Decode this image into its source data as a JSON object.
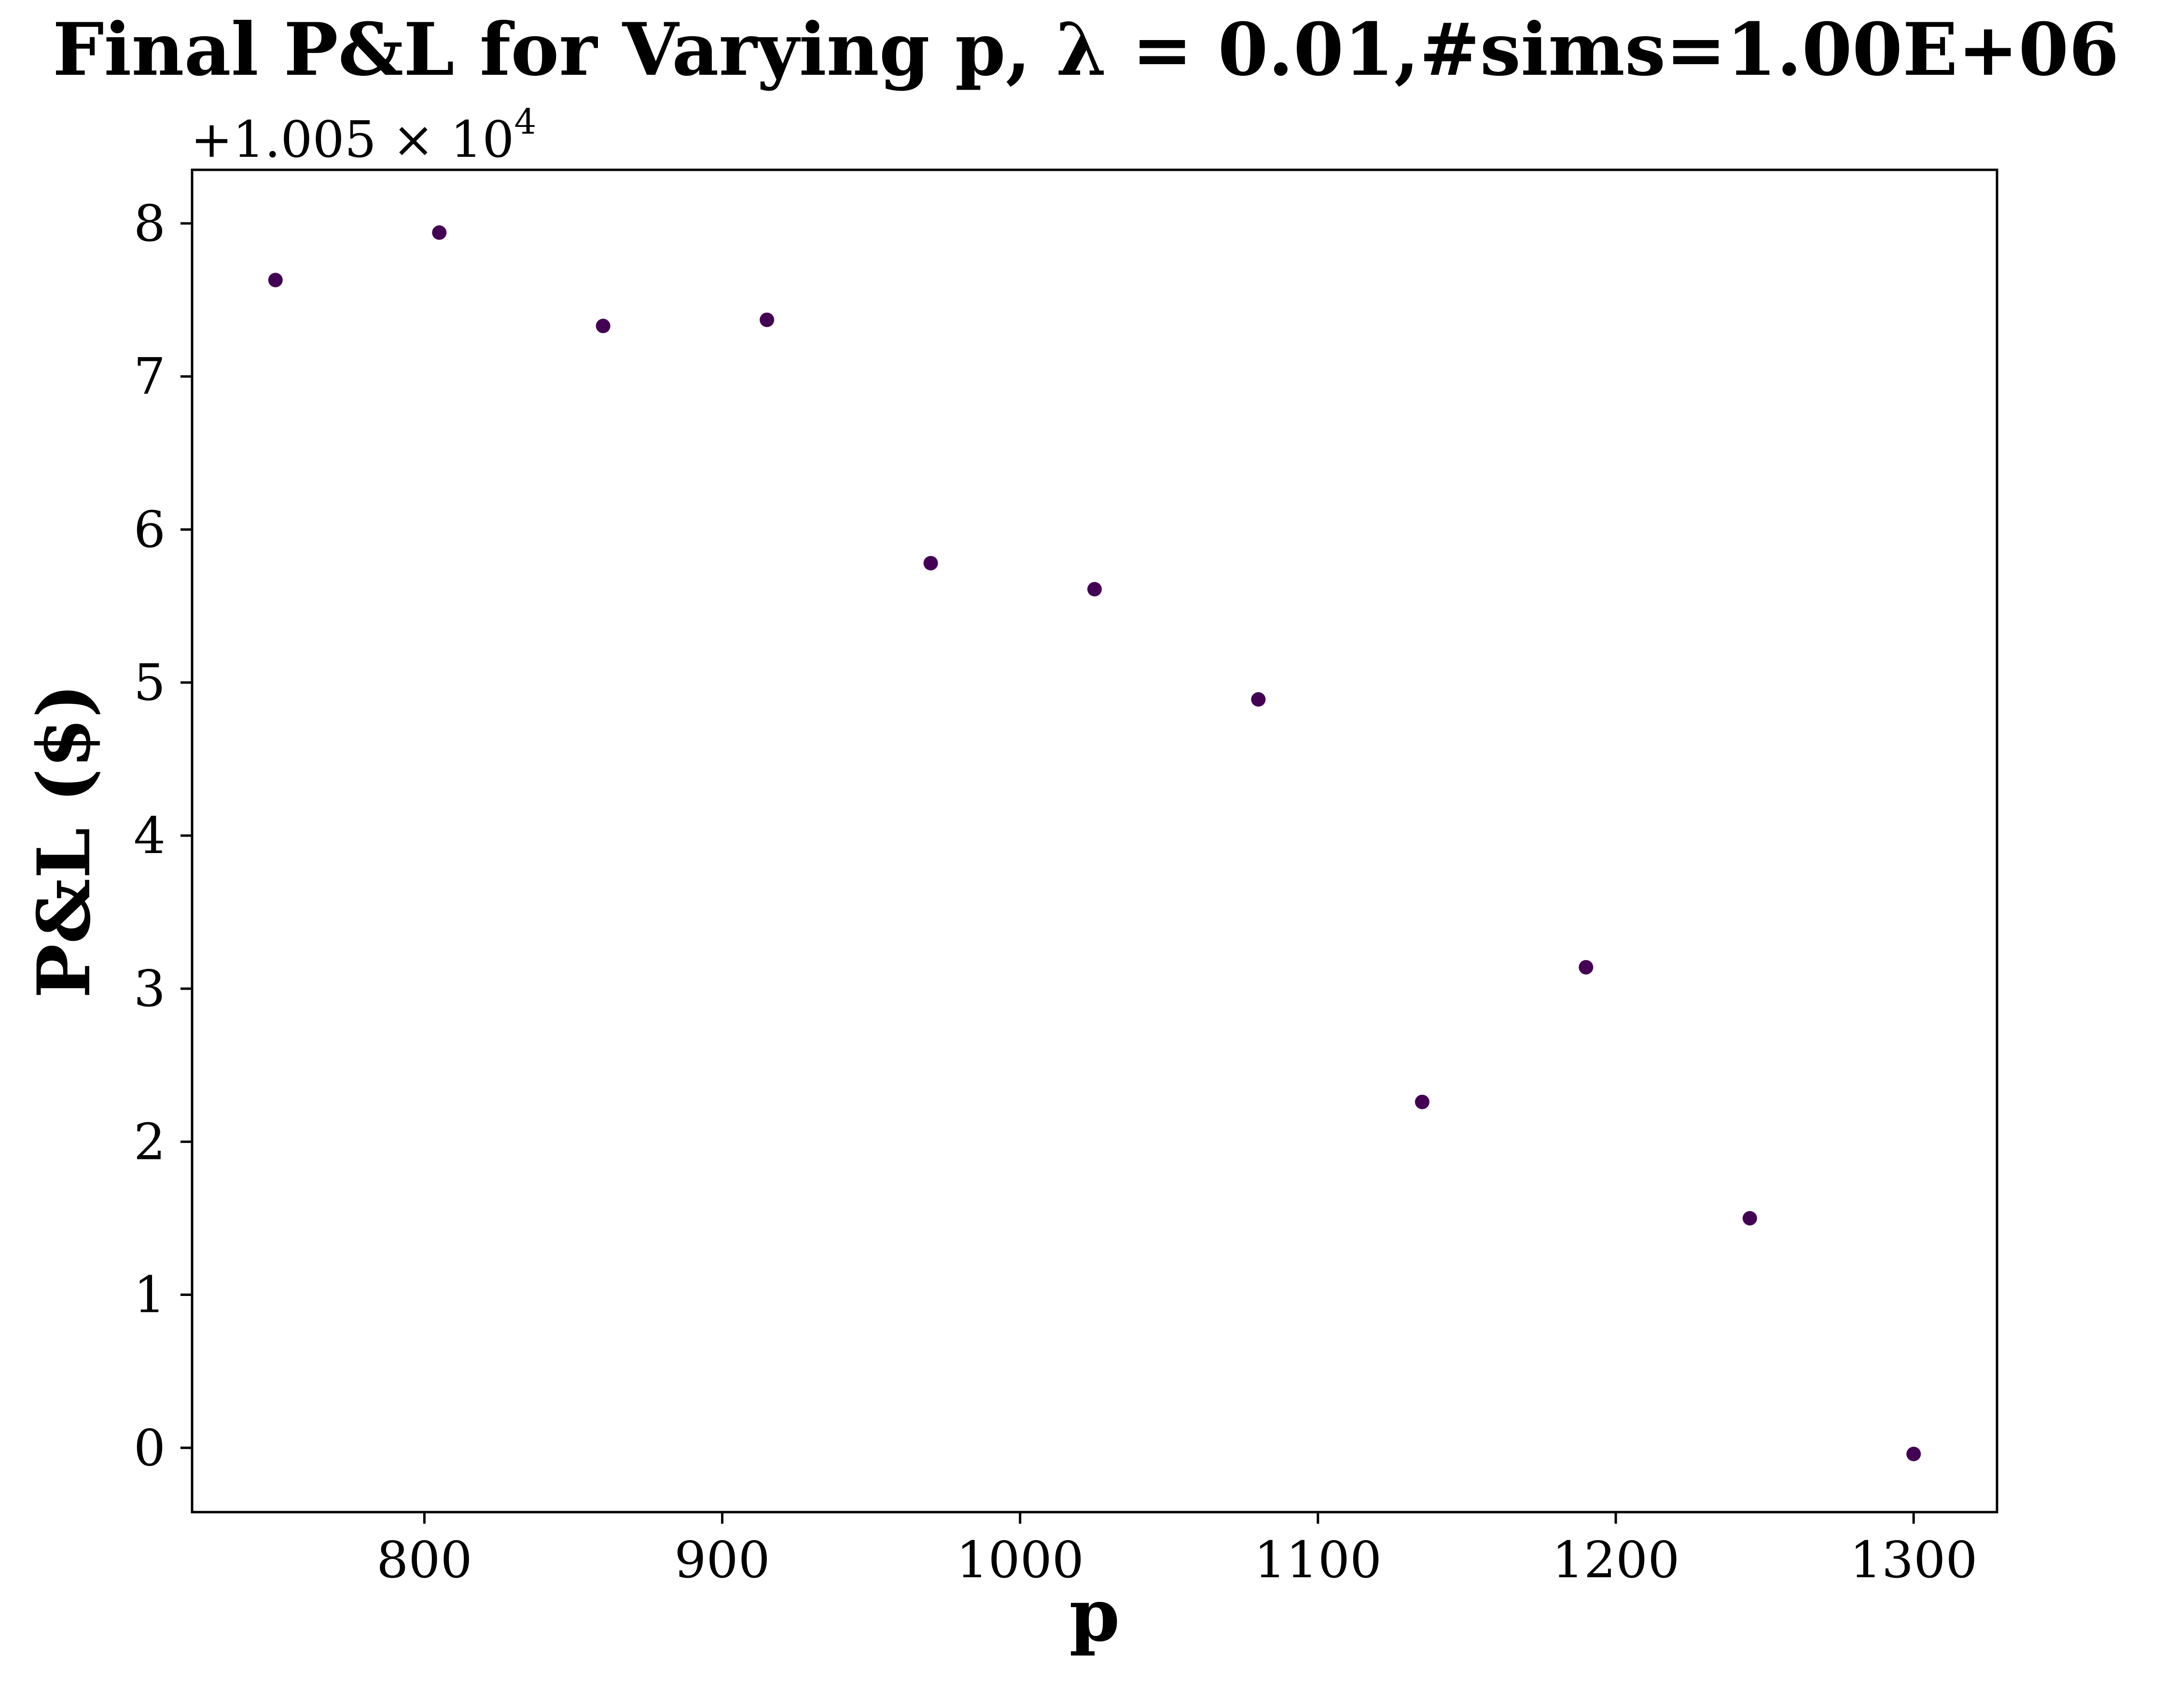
{
  "chart_data": {
    "type": "scatter",
    "title": "Final P&L for Varying p, λ = 0.01,#sims=1.00E+06",
    "xlabel": "p",
    "ylabel": "P&L ($)",
    "offset_text": "+1.005 × 10",
    "offset_exponent": "4",
    "xlim": [
      722,
      1328
    ],
    "ylim": [
      -0.42,
      8.35
    ],
    "x_ticks": [
      800,
      900,
      1000,
      1100,
      1200,
      1300
    ],
    "x_tick_labels": [
      "800",
      "900",
      "1000",
      "1100",
      "1200",
      "1300"
    ],
    "y_ticks": [
      0,
      1,
      2,
      3,
      4,
      5,
      6,
      7,
      8
    ],
    "y_tick_labels": [
      "0",
      "1",
      "2",
      "3",
      "4",
      "5",
      "6",
      "7",
      "8"
    ],
    "grid": false,
    "marker_color": "#440154",
    "series": [
      {
        "x": [
          750,
          805,
          860,
          915,
          970,
          1025,
          1080,
          1135,
          1190,
          1245,
          1300
        ],
        "y": [
          7.63,
          7.94,
          7.33,
          7.37,
          5.78,
          5.61,
          4.89,
          2.26,
          3.14,
          1.5,
          -0.04
        ]
      }
    ]
  }
}
